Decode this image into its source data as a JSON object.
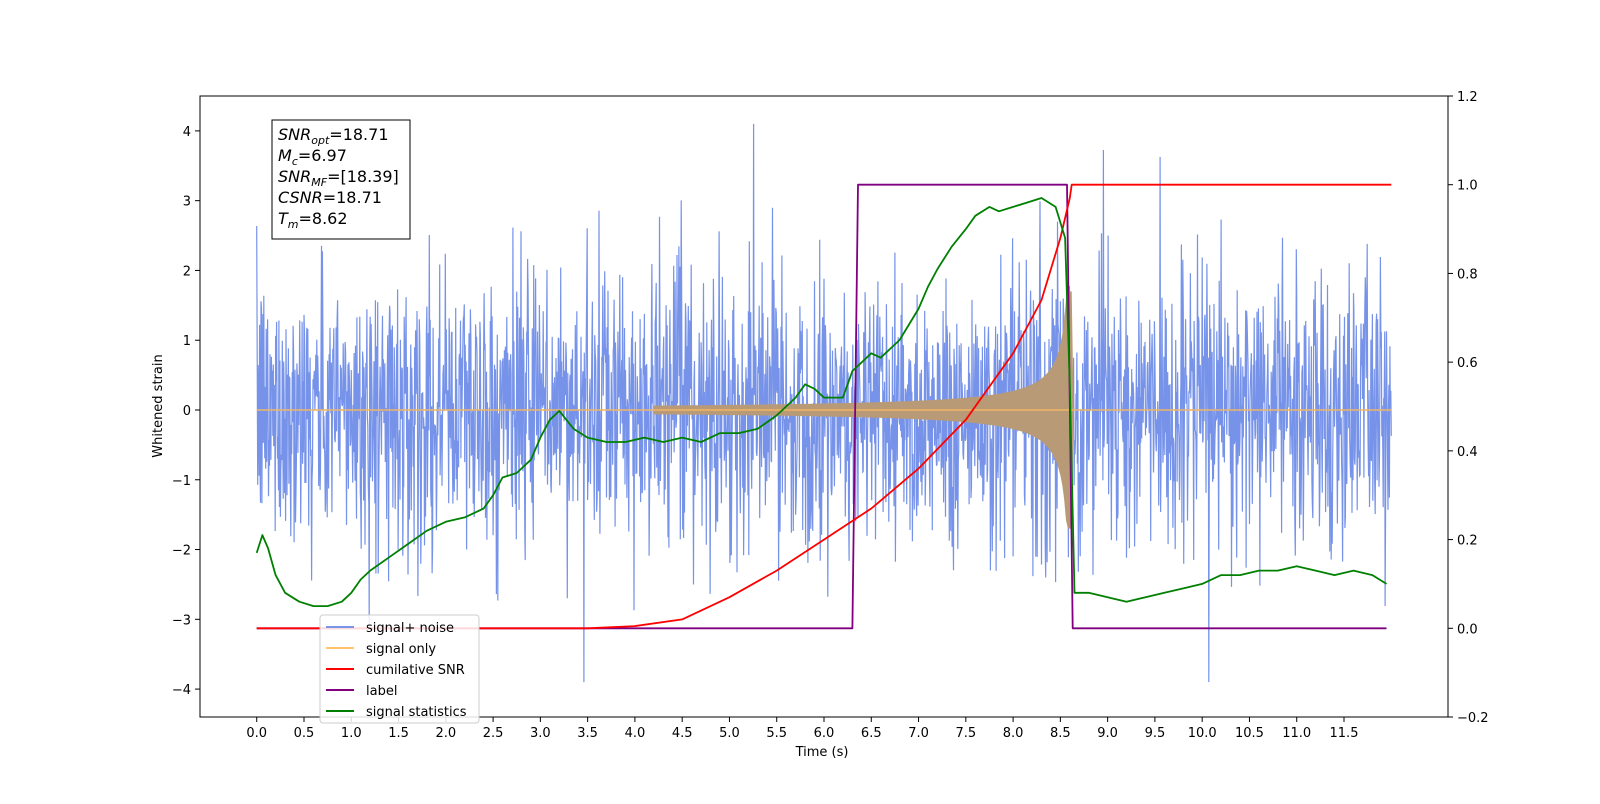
{
  "chart_data": {
    "type": "line",
    "xlabel": "Time (s)",
    "ylabel": "Whitened strain",
    "xlim": [
      -0.6,
      12.6
    ],
    "ylim": [
      -4.4,
      4.5
    ],
    "y2lim": [
      -0.2,
      1.2
    ],
    "x_ticks": [
      "0.0",
      "0.5",
      "1.0",
      "1.5",
      "2.0",
      "2.5",
      "3.0",
      "3.5",
      "4.0",
      "4.5",
      "5.0",
      "5.5",
      "6.0",
      "6.5",
      "7.0",
      "7.5",
      "8.0",
      "8.5",
      "9.0",
      "9.5",
      "10.0",
      "10.5",
      "11.0",
      "11.5"
    ],
    "y_ticks": [
      "4",
      "3",
      "2",
      "1",
      "0",
      "−1",
      "−2",
      "−3",
      "−4"
    ],
    "y2_ticks": [
      "1.2",
      "1.0",
      "0.8",
      "0.6",
      "0.4",
      "0.2",
      "0.0",
      "−0.2"
    ],
    "grid": false,
    "legend_position": "lower-left",
    "info_box": [
      {
        "base": "SNR",
        "sub": "opt",
        "value": "=18.71"
      },
      {
        "base": "M",
        "sub": "c",
        "value": "=6.97"
      },
      {
        "base": "SNR",
        "sub": "MF",
        "value": "=[18.39]"
      },
      {
        "base": "CSNR",
        "sub": "",
        "value": "=18.71"
      },
      {
        "base": "T",
        "sub": "m",
        "value": "=8.62"
      }
    ],
    "series": [
      {
        "name": "signal+ noise",
        "color": "#4169E1",
        "axis": "left",
        "kind": "noise",
        "x_range": [
          0.0,
          12.0
        ],
        "amplitude_std": 1.0
      },
      {
        "name": "signal only",
        "color": "#FFA500",
        "axis": "left",
        "kind": "chirp",
        "x_range": [
          0.0,
          12.0
        ],
        "merger_time": 8.62
      },
      {
        "name": "cumilative SNR",
        "color": "#FF0000",
        "axis": "right",
        "x": [
          0.0,
          3.5,
          4.0,
          4.5,
          5.0,
          5.5,
          6.0,
          6.5,
          7.0,
          7.5,
          8.0,
          8.3,
          8.5,
          8.6,
          8.62,
          12.0
        ],
        "y": [
          0.0,
          0.0,
          0.005,
          0.02,
          0.07,
          0.13,
          0.2,
          0.27,
          0.36,
          0.47,
          0.62,
          0.74,
          0.88,
          0.97,
          1.0,
          1.0
        ]
      },
      {
        "name": "label",
        "color": "#800080",
        "axis": "right",
        "x": [
          0.0,
          6.3,
          6.36,
          8.57,
          8.63,
          11.95
        ],
        "y": [
          0.0,
          0.0,
          1.0,
          1.0,
          0.0,
          0.0
        ]
      },
      {
        "name": "signal statistics",
        "color": "#008000",
        "axis": "right",
        "x": [
          0.0,
          0.06,
          0.12,
          0.2,
          0.3,
          0.45,
          0.6,
          0.75,
          0.9,
          1.0,
          1.1,
          1.2,
          1.4,
          1.6,
          1.8,
          2.0,
          2.2,
          2.4,
          2.5,
          2.6,
          2.75,
          2.9,
          3.0,
          3.1,
          3.2,
          3.35,
          3.5,
          3.7,
          3.9,
          4.1,
          4.3,
          4.5,
          4.7,
          4.9,
          5.1,
          5.3,
          5.5,
          5.7,
          5.8,
          5.9,
          6.0,
          6.2,
          6.3,
          6.35,
          6.5,
          6.6,
          6.8,
          7.0,
          7.1,
          7.2,
          7.35,
          7.5,
          7.6,
          7.75,
          7.85,
          8.0,
          8.15,
          8.3,
          8.45,
          8.55,
          8.6,
          8.65,
          8.8,
          9.0,
          9.2,
          9.4,
          9.6,
          9.8,
          10.0,
          10.2,
          10.4,
          10.6,
          10.8,
          11.0,
          11.2,
          11.4,
          11.6,
          11.8,
          11.95
        ],
        "y": [
          0.17,
          0.21,
          0.18,
          0.12,
          0.08,
          0.06,
          0.05,
          0.05,
          0.06,
          0.08,
          0.11,
          0.13,
          0.16,
          0.19,
          0.22,
          0.24,
          0.25,
          0.27,
          0.3,
          0.34,
          0.35,
          0.38,
          0.43,
          0.47,
          0.49,
          0.45,
          0.43,
          0.42,
          0.42,
          0.43,
          0.42,
          0.43,
          0.42,
          0.44,
          0.44,
          0.45,
          0.48,
          0.52,
          0.55,
          0.54,
          0.52,
          0.52,
          0.58,
          0.59,
          0.62,
          0.61,
          0.65,
          0.72,
          0.77,
          0.81,
          0.86,
          0.9,
          0.93,
          0.95,
          0.94,
          0.95,
          0.96,
          0.97,
          0.95,
          0.88,
          0.55,
          0.08,
          0.08,
          0.07,
          0.06,
          0.07,
          0.08,
          0.09,
          0.1,
          0.12,
          0.12,
          0.13,
          0.13,
          0.14,
          0.13,
          0.12,
          0.13,
          0.12,
          0.1
        ]
      }
    ]
  }
}
